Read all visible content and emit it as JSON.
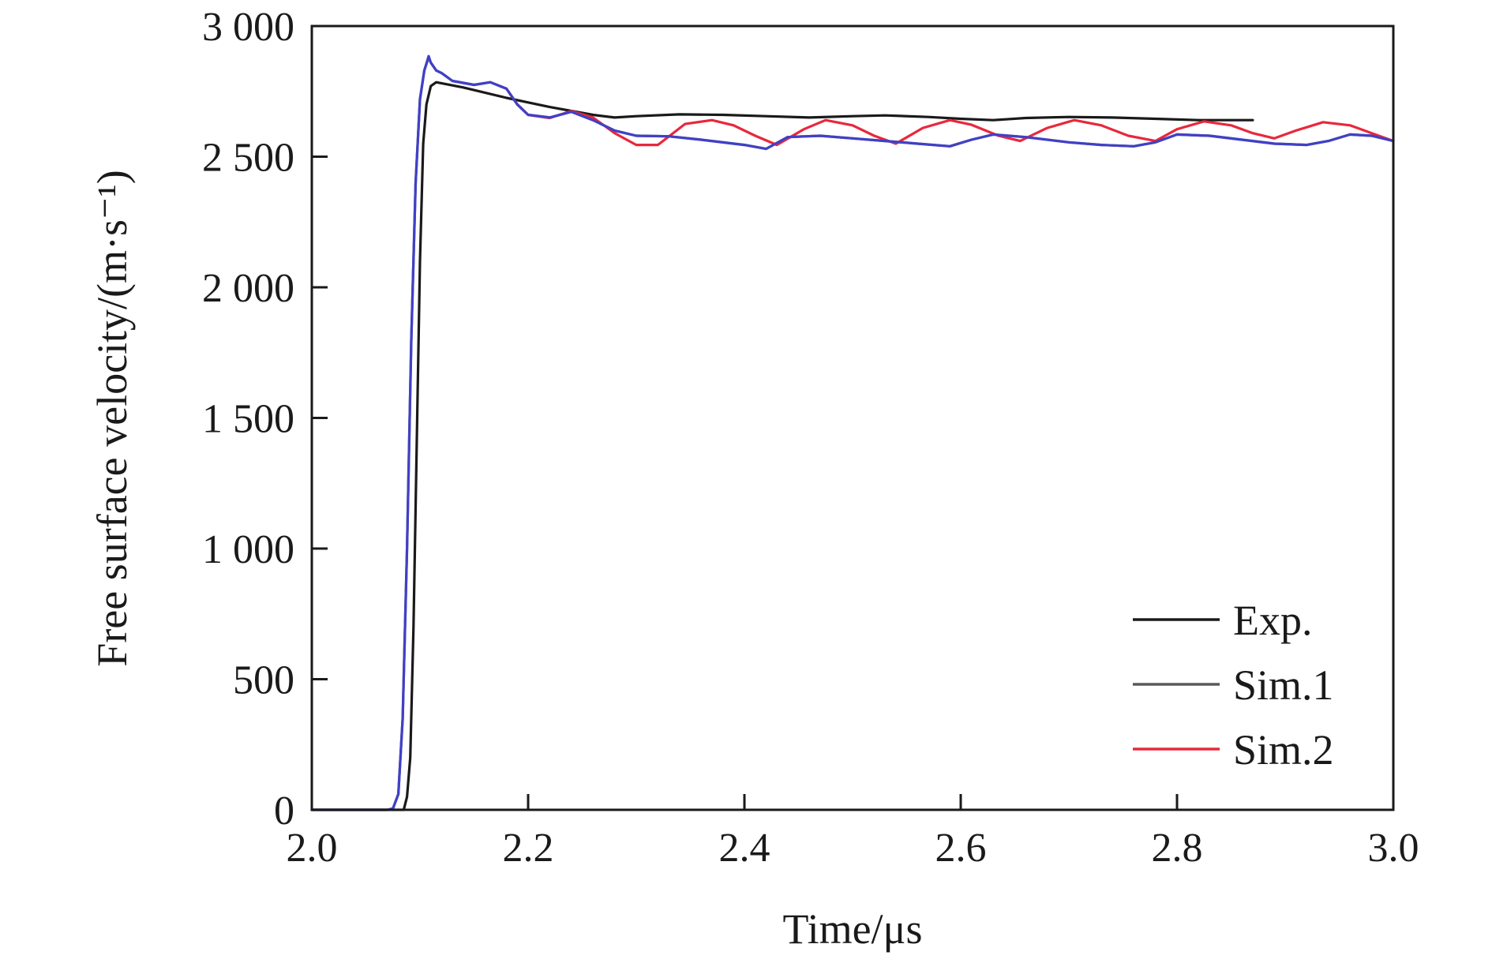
{
  "chart_data": {
    "type": "line",
    "title": "",
    "xlabel": "Time/μs",
    "ylabel": "Free surface velocity/(m·s⁻¹)",
    "xlim": [
      2.0,
      3.0
    ],
    "ylim": [
      0,
      3000
    ],
    "x_ticks": [
      "2.0",
      "2.2",
      "2.4",
      "2.6",
      "2.8",
      "3.0"
    ],
    "y_ticks": [
      "0",
      "500",
      "1 000",
      "1 500",
      "2 000",
      "2 500",
      "3 000"
    ],
    "grid": false,
    "legend_position": "bottom-right",
    "series": [
      {
        "name": "Exp.",
        "color": "#1a1a1a",
        "points": [
          [
            2.0,
            0
          ],
          [
            2.08,
            0
          ],
          [
            2.085,
            0
          ],
          [
            2.088,
            50
          ],
          [
            2.091,
            200
          ],
          [
            2.094,
            700
          ],
          [
            2.097,
            1400
          ],
          [
            2.1,
            2100
          ],
          [
            2.103,
            2550
          ],
          [
            2.106,
            2700
          ],
          [
            2.11,
            2770
          ],
          [
            2.115,
            2785
          ],
          [
            2.14,
            2765
          ],
          [
            2.18,
            2725
          ],
          [
            2.22,
            2690
          ],
          [
            2.26,
            2660
          ],
          [
            2.28,
            2650
          ],
          [
            2.3,
            2655
          ],
          [
            2.34,
            2662
          ],
          [
            2.38,
            2660
          ],
          [
            2.42,
            2655
          ],
          [
            2.46,
            2650
          ],
          [
            2.5,
            2655
          ],
          [
            2.53,
            2658
          ],
          [
            2.57,
            2652
          ],
          [
            2.6,
            2645
          ],
          [
            2.63,
            2640
          ],
          [
            2.66,
            2648
          ],
          [
            2.7,
            2652
          ],
          [
            2.74,
            2650
          ],
          [
            2.78,
            2645
          ],
          [
            2.82,
            2640
          ],
          [
            2.87,
            2640
          ]
        ]
      },
      {
        "name": "Sim.1",
        "color": "#5a5a5a",
        "points": [
          [
            2.0,
            0
          ],
          [
            2.07,
            0
          ],
          [
            2.075,
            5
          ],
          [
            2.08,
            60
          ],
          [
            2.084,
            350
          ],
          [
            2.088,
            1000
          ],
          [
            2.092,
            1800
          ],
          [
            2.096,
            2400
          ],
          [
            2.1,
            2720
          ],
          [
            2.104,
            2830
          ],
          [
            2.108,
            2880
          ],
          [
            2.11,
            2860
          ],
          [
            2.115,
            2830
          ],
          [
            2.12,
            2820
          ],
          [
            2.13,
            2790
          ],
          [
            2.15,
            2775
          ],
          [
            2.165,
            2785
          ],
          [
            2.18,
            2760
          ],
          [
            2.19,
            2700
          ],
          [
            2.2,
            2660
          ],
          [
            2.22,
            2650
          ],
          [
            2.24,
            2672
          ],
          [
            2.26,
            2640
          ],
          [
            2.28,
            2600
          ],
          [
            2.3,
            2580
          ],
          [
            2.33,
            2578
          ],
          [
            2.36,
            2565
          ],
          [
            2.4,
            2545
          ],
          [
            2.42,
            2530
          ],
          [
            2.44,
            2575
          ],
          [
            2.47,
            2580
          ],
          [
            2.5,
            2570
          ],
          [
            2.53,
            2560
          ],
          [
            2.56,
            2550
          ],
          [
            2.59,
            2540
          ],
          [
            2.61,
            2565
          ],
          [
            2.63,
            2585
          ],
          [
            2.66,
            2575
          ],
          [
            2.7,
            2555
          ],
          [
            2.73,
            2545
          ],
          [
            2.76,
            2540
          ],
          [
            2.78,
            2555
          ],
          [
            2.8,
            2585
          ],
          [
            2.83,
            2580
          ],
          [
            2.86,
            2565
          ],
          [
            2.89,
            2550
          ],
          [
            2.92,
            2545
          ],
          [
            2.94,
            2560
          ],
          [
            2.96,
            2585
          ],
          [
            2.98,
            2580
          ],
          [
            3.0,
            2560
          ]
        ]
      },
      {
        "name": "Sim.2",
        "color": "#e8283c",
        "points": [
          [
            2.18,
            2760
          ],
          [
            2.19,
            2700
          ],
          [
            2.2,
            2660
          ],
          [
            2.22,
            2648
          ],
          [
            2.24,
            2675
          ],
          [
            2.26,
            2650
          ],
          [
            2.28,
            2590
          ],
          [
            2.3,
            2545
          ],
          [
            2.32,
            2545
          ],
          [
            2.345,
            2625
          ],
          [
            2.37,
            2640
          ],
          [
            2.39,
            2620
          ],
          [
            2.41,
            2580
          ],
          [
            2.43,
            2545
          ],
          [
            2.455,
            2605
          ],
          [
            2.475,
            2640
          ],
          [
            2.5,
            2620
          ],
          [
            2.52,
            2580
          ],
          [
            2.54,
            2550
          ],
          [
            2.565,
            2610
          ],
          [
            2.59,
            2640
          ],
          [
            2.61,
            2622
          ],
          [
            2.635,
            2580
          ],
          [
            2.655,
            2560
          ],
          [
            2.68,
            2610
          ],
          [
            2.705,
            2640
          ],
          [
            2.73,
            2620
          ],
          [
            2.755,
            2580
          ],
          [
            2.78,
            2560
          ],
          [
            2.8,
            2605
          ],
          [
            2.825,
            2635
          ],
          [
            2.85,
            2620
          ],
          [
            2.87,
            2590
          ],
          [
            2.89,
            2570
          ],
          [
            2.91,
            2600
          ],
          [
            2.935,
            2632
          ],
          [
            2.96,
            2620
          ],
          [
            2.98,
            2590
          ],
          [
            3.0,
            2560
          ]
        ]
      },
      {
        "name": "",
        "color": "#4040c8",
        "points": [
          [
            2.0,
            0
          ],
          [
            2.07,
            0
          ],
          [
            2.075,
            5
          ],
          [
            2.08,
            60
          ],
          [
            2.084,
            350
          ],
          [
            2.088,
            1000
          ],
          [
            2.092,
            1800
          ],
          [
            2.096,
            2400
          ],
          [
            2.1,
            2720
          ],
          [
            2.104,
            2830
          ],
          [
            2.108,
            2885
          ],
          [
            2.11,
            2860
          ],
          [
            2.115,
            2830
          ],
          [
            2.12,
            2820
          ],
          [
            2.13,
            2790
          ],
          [
            2.15,
            2775
          ],
          [
            2.165,
            2785
          ],
          [
            2.18,
            2760
          ],
          [
            2.19,
            2700
          ],
          [
            2.2,
            2660
          ],
          [
            2.22,
            2650
          ],
          [
            2.24,
            2672
          ],
          [
            2.26,
            2640
          ],
          [
            2.28,
            2600
          ],
          [
            2.3,
            2580
          ],
          [
            2.33,
            2578
          ],
          [
            2.36,
            2565
          ],
          [
            2.4,
            2545
          ],
          [
            2.42,
            2530
          ],
          [
            2.44,
            2575
          ],
          [
            2.47,
            2580
          ],
          [
            2.5,
            2570
          ],
          [
            2.53,
            2560
          ],
          [
            2.56,
            2550
          ],
          [
            2.59,
            2540
          ],
          [
            2.61,
            2565
          ],
          [
            2.63,
            2585
          ],
          [
            2.66,
            2575
          ],
          [
            2.7,
            2555
          ],
          [
            2.73,
            2545
          ],
          [
            2.76,
            2540
          ],
          [
            2.78,
            2555
          ],
          [
            2.8,
            2585
          ],
          [
            2.83,
            2580
          ],
          [
            2.86,
            2565
          ],
          [
            2.89,
            2550
          ],
          [
            2.92,
            2545
          ],
          [
            2.94,
            2560
          ],
          [
            2.96,
            2585
          ],
          [
            2.98,
            2580
          ],
          [
            3.0,
            2560
          ]
        ]
      }
    ]
  }
}
